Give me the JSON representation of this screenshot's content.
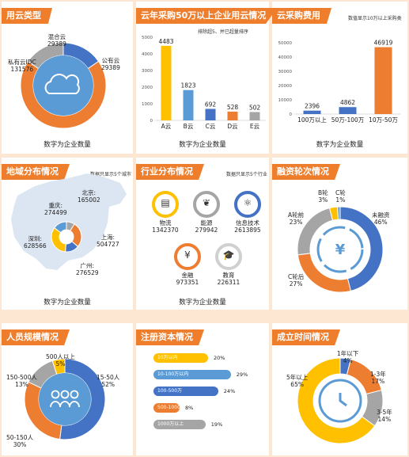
{
  "panels": {
    "cloud_type": {
      "title": "用云类型",
      "caption": "数字为企业数量"
    },
    "procurement": {
      "title": "云年采购50万以上企业用云情况",
      "note": "排除超5、并已超量排序",
      "caption": "数字为企业数量"
    },
    "cost": {
      "title": "云采购费用",
      "note": "数值显示10万以上采购类",
      "caption": "数字为企业数量"
    },
    "region": {
      "title": "地域分布情况",
      "note": "数据只显示5个城市",
      "caption": "数字为企业数量"
    },
    "industry": {
      "title": "行业分布情况",
      "note": "数据只显示5个行业",
      "caption": "数字为企业数量"
    },
    "funding": {
      "title": "融资轮次情况"
    },
    "staff": {
      "title": "人员规模情况"
    },
    "capital": {
      "title": "注册资本情况"
    },
    "founded": {
      "title": "成立时间情况"
    }
  },
  "colors": {
    "blue": "#4472c4",
    "orange": "#ed7d31",
    "gray": "#a5a5a5",
    "yellow": "#ffc000",
    "lightblue": "#5b9bd5",
    "header": "#ee7d2c"
  },
  "chart_data": [
    {
      "id": "cloud_type",
      "type": "pie",
      "title": "用云类型",
      "labels": [
        "公有云",
        "私有云IDC",
        "混合云"
      ],
      "values": [
        29389,
        131576,
        29389
      ],
      "colors": [
        "#4472c4",
        "#ed7d31",
        "#a5a5a5"
      ],
      "icon": "cloud-icon"
    },
    {
      "id": "procurement",
      "type": "bar",
      "title": "云年采购50万以上企业用云情况",
      "categories": [
        "A云",
        "B云",
        "C云",
        "D云",
        "E云"
      ],
      "values": [
        4483,
        1823,
        692,
        528,
        502
      ],
      "colors": [
        "#ffc000",
        "#5b9bd5",
        "#4472c4",
        "#ed7d31",
        "#a5a5a5"
      ],
      "ylim": [
        0,
        5000
      ]
    },
    {
      "id": "cost",
      "type": "bar",
      "title": "云采购费用",
      "categories": [
        "100万以上",
        "50万-100万",
        "10万-50万"
      ],
      "values": [
        2396,
        4862,
        46919
      ],
      "colors": [
        "#4472c4",
        "#4472c4",
        "#ed7d31"
      ],
      "ylim": [
        0,
        50000
      ]
    },
    {
      "id": "region",
      "type": "pie",
      "title": "地域分布情况",
      "labels": [
        "北京",
        "上海",
        "广州",
        "深圳",
        "重庆"
      ],
      "values": [
        165002,
        504727,
        276529,
        628566,
        274499
      ],
      "label_text": [
        "北京:",
        "上海:",
        "广州:",
        "深圳:",
        "重庆:"
      ],
      "colors": [
        "#a5a5a5",
        "#ed7d31",
        "#4472c4",
        "#ffc000",
        "#5b9bd5"
      ]
    },
    {
      "id": "industry",
      "type": "table",
      "title": "行业分布情况",
      "items": [
        {
          "label": "物流",
          "value": 1342370,
          "icon": "truck-icon"
        },
        {
          "label": "能源",
          "value": 279942,
          "icon": "leaf-icon"
        },
        {
          "label": "信息技术",
          "value": 2613895,
          "icon": "atom-icon"
        },
        {
          "label": "金融",
          "value": 973351,
          "icon": "yen-coin-icon"
        },
        {
          "label": "教育",
          "value": 226311,
          "icon": "graduation-cap-icon"
        }
      ]
    },
    {
      "id": "funding",
      "type": "pie",
      "title": "融资轮次情况",
      "labels": [
        "未融资",
        "C轮后",
        "A轮前",
        "B轮",
        "C轮"
      ],
      "values": [
        46,
        27,
        23,
        3,
        1
      ],
      "label_text": [
        "46%",
        "27%",
        "23%",
        "3%",
        "1%"
      ],
      "colors": [
        "#4472c4",
        "#ed7d31",
        "#a5a5a5",
        "#ffc000",
        "#5b9bd5"
      ],
      "icon": "yen-cycle-icon"
    },
    {
      "id": "staff",
      "type": "pie",
      "title": "人员规模情况",
      "labels": [
        "15-50人",
        "50-150人",
        "150-500人",
        "500人以上"
      ],
      "values": [
        52,
        30,
        13,
        5
      ],
      "label_text": [
        "52%",
        "30%",
        "13%",
        "5%"
      ],
      "colors": [
        "#4472c4",
        "#ed7d31",
        "#a5a5a5",
        "#ffc000"
      ],
      "icon": "people-icon"
    },
    {
      "id": "capital",
      "type": "bar",
      "title": "注册资本情况",
      "categories": [
        "10万以内",
        "10-100万以内",
        "100-500万",
        "500-1000万",
        "1000万以上"
      ],
      "values": [
        20,
        29,
        24,
        8,
        19
      ],
      "value_text": [
        "20%",
        "29%",
        "24%",
        "8%",
        "19%"
      ],
      "colors": [
        "#ffc000",
        "#5b9bd5",
        "#4472c4",
        "#ed7d31",
        "#a5a5a5"
      ]
    },
    {
      "id": "founded",
      "type": "pie",
      "title": "成立时间情况",
      "labels": [
        "1年以下",
        "1-3年",
        "3-5年",
        "5年以上"
      ],
      "values": [
        4,
        17,
        14,
        65
      ],
      "label_text": [
        "4%",
        "17%",
        "14%",
        "65%"
      ],
      "colors": [
        "#4472c4",
        "#ed7d31",
        "#a5a5a5",
        "#ffc000"
      ],
      "icon": "clock-icon"
    }
  ]
}
